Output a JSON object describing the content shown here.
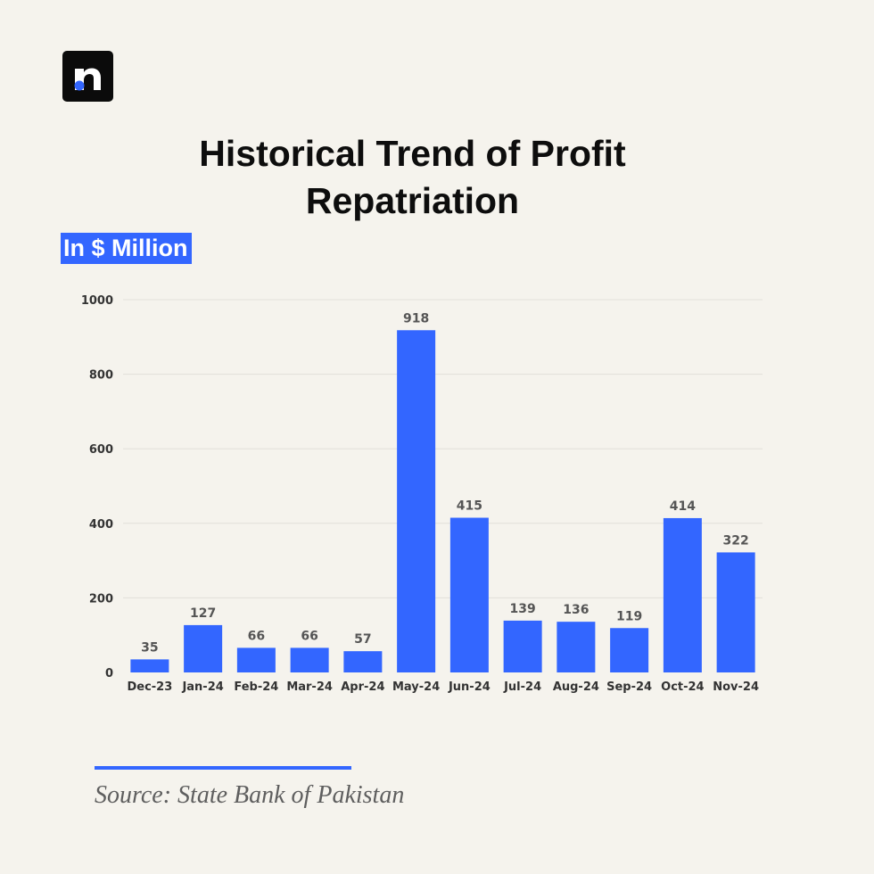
{
  "title_line1": "Historical Trend of Profit",
  "title_line2": "Repatriation",
  "unit_label": "In $ Million",
  "source": "Source: State Bank of Pakistan",
  "colors": {
    "background": "#f5f3ed",
    "bar": "#3366ff",
    "accent": "#3366ff",
    "gridline": "#e2e0da",
    "logo_bg": "#0b0b0b"
  },
  "logo_icon": "n-letter-logo-icon",
  "chart_data": {
    "type": "bar",
    "title": "Historical Trend of Profit Repatriation",
    "ylabel": "In $ Million",
    "xlabel": "",
    "categories": [
      "Dec-23",
      "Jan-24",
      "Feb-24",
      "Mar-24",
      "Apr-24",
      "May-24",
      "Jun-24",
      "Jul-24",
      "Aug-24",
      "Sep-24",
      "Oct-24",
      "Nov-24"
    ],
    "values": [
      35,
      127,
      66,
      66,
      57,
      918,
      415,
      139,
      136,
      119,
      414,
      322
    ],
    "ylim": [
      0,
      1000
    ],
    "yticks": [
      0,
      200,
      400,
      600,
      800,
      1000
    ],
    "grid": true,
    "legend": "none"
  }
}
